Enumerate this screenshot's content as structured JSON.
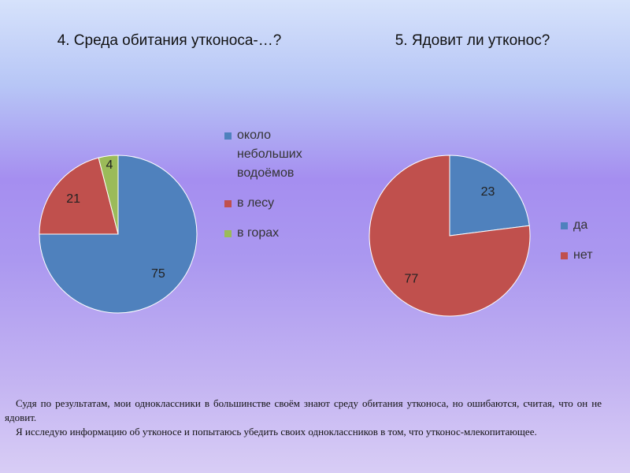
{
  "chart_data": [
    {
      "type": "pie",
      "title": "4. Среда обитания утконоса-…?",
      "categories": [
        "около небольших водоёмов",
        "в лесу",
        "в горах"
      ],
      "values": [
        75,
        21,
        4
      ],
      "colors": [
        "#4f81bd",
        "#c0504d",
        "#9bbb59"
      ],
      "legend": "right"
    },
    {
      "type": "pie",
      "title": "5. Ядовит ли утконос?",
      "categories": [
        "да",
        "нет"
      ],
      "values": [
        23,
        77
      ],
      "colors": [
        "#4f81bd",
        "#c0504d"
      ],
      "legend": "right"
    }
  ],
  "text": [
    "Судя по результатам, мои одноклассники в большинстве своём знают среду обитания утконоса, но ошибаются, считая, что он не ядовит.",
    "Я исследую информацию об утконосе и попытаюсь убедить своих одноклассников в том, что утконос-млекопитающее."
  ]
}
